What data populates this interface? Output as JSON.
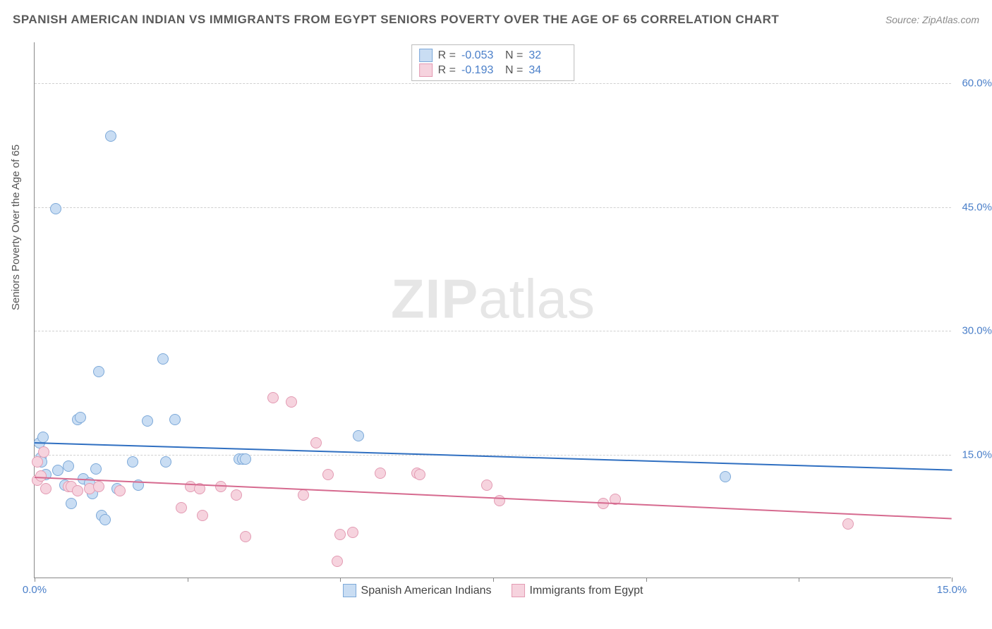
{
  "header": {
    "title": "SPANISH AMERICAN INDIAN VS IMMIGRANTS FROM EGYPT SENIORS POVERTY OVER THE AGE OF 65 CORRELATION CHART",
    "source_prefix": "Source: ",
    "source_name": "ZipAtlas.com"
  },
  "watermark": {
    "bold": "ZIP",
    "rest": "atlas"
  },
  "chart": {
    "type": "scatter",
    "ylabel": "Seniors Poverty Over the Age of 65",
    "xlim": [
      0,
      15
    ],
    "ylim": [
      0,
      65
    ],
    "y_ticks": [
      {
        "value": 15,
        "label": "15.0%"
      },
      {
        "value": 30,
        "label": "30.0%"
      },
      {
        "value": 45,
        "label": "45.0%"
      },
      {
        "value": 60,
        "label": "60.0%"
      }
    ],
    "x_ticks": [
      0,
      2.5,
      5,
      7.5,
      10,
      12.5,
      15
    ],
    "x_tick_labels": [
      {
        "value": 0,
        "label": "0.0%"
      },
      {
        "value": 15,
        "label": "15.0%"
      }
    ],
    "grid_color": "#d0d0d0",
    "background_color": "#ffffff",
    "marker_radius": 8,
    "marker_border_width": 1.4,
    "series": [
      {
        "name": "Spanish American Indians",
        "fill": "#c9ddf3",
        "stroke": "#7da9d9",
        "line_color": "#2f6fc1",
        "r_label": "R = ",
        "r_value": "-0.053",
        "n_label": "N = ",
        "n_value": "32",
        "trend": {
          "x1": 0,
          "y1": 16.5,
          "x2": 15,
          "y2": 13.2
        },
        "points": [
          [
            0.08,
            16.3
          ],
          [
            0.1,
            14.5
          ],
          [
            0.12,
            14.0
          ],
          [
            0.14,
            17.0
          ],
          [
            0.18,
            12.5
          ],
          [
            0.35,
            44.7
          ],
          [
            0.38,
            13.0
          ],
          [
            0.5,
            11.2
          ],
          [
            0.55,
            13.5
          ],
          [
            0.6,
            9.0
          ],
          [
            0.7,
            19.2
          ],
          [
            0.75,
            19.4
          ],
          [
            0.8,
            12.0
          ],
          [
            0.9,
            11.5
          ],
          [
            0.95,
            10.2
          ],
          [
            1.0,
            13.2
          ],
          [
            1.05,
            25.0
          ],
          [
            1.1,
            7.5
          ],
          [
            1.15,
            7.0
          ],
          [
            1.25,
            53.5
          ],
          [
            1.35,
            10.8
          ],
          [
            1.6,
            14.0
          ],
          [
            1.7,
            11.2
          ],
          [
            1.85,
            19.0
          ],
          [
            2.1,
            26.5
          ],
          [
            2.15,
            14.0
          ],
          [
            2.3,
            19.2
          ],
          [
            3.35,
            14.4
          ],
          [
            3.4,
            14.4
          ],
          [
            3.45,
            14.4
          ],
          [
            5.3,
            17.2
          ],
          [
            11.3,
            12.2
          ]
        ]
      },
      {
        "name": "Immigrants from Egypt",
        "fill": "#f6d3de",
        "stroke": "#e39bb3",
        "line_color": "#d66a8f",
        "r_label": "R = ",
        "r_value": "-0.193",
        "n_label": "N = ",
        "n_value": "34",
        "trend": {
          "x1": 0,
          "y1": 12.3,
          "x2": 15,
          "y2": 7.3
        },
        "points": [
          [
            0.05,
            14.0
          ],
          [
            0.05,
            11.8
          ],
          [
            0.1,
            12.3
          ],
          [
            0.15,
            15.2
          ],
          [
            0.18,
            10.8
          ],
          [
            0.55,
            11.0
          ],
          [
            0.6,
            11.0
          ],
          [
            0.7,
            10.5
          ],
          [
            0.9,
            10.8
          ],
          [
            1.05,
            11.0
          ],
          [
            1.4,
            10.5
          ],
          [
            2.4,
            8.5
          ],
          [
            2.55,
            11.0
          ],
          [
            2.7,
            10.8
          ],
          [
            2.75,
            7.5
          ],
          [
            3.05,
            11.0
          ],
          [
            3.3,
            10.0
          ],
          [
            3.45,
            5.0
          ],
          [
            3.9,
            21.8
          ],
          [
            4.2,
            21.3
          ],
          [
            4.4,
            10.0
          ],
          [
            4.6,
            16.3
          ],
          [
            4.8,
            12.5
          ],
          [
            4.95,
            2.0
          ],
          [
            5.0,
            5.2
          ],
          [
            5.2,
            5.5
          ],
          [
            5.65,
            12.7
          ],
          [
            6.25,
            12.7
          ],
          [
            6.3,
            12.5
          ],
          [
            7.4,
            11.2
          ],
          [
            7.6,
            9.3
          ],
          [
            9.3,
            9.0
          ],
          [
            9.5,
            9.5
          ],
          [
            13.3,
            6.5
          ]
        ]
      }
    ]
  }
}
